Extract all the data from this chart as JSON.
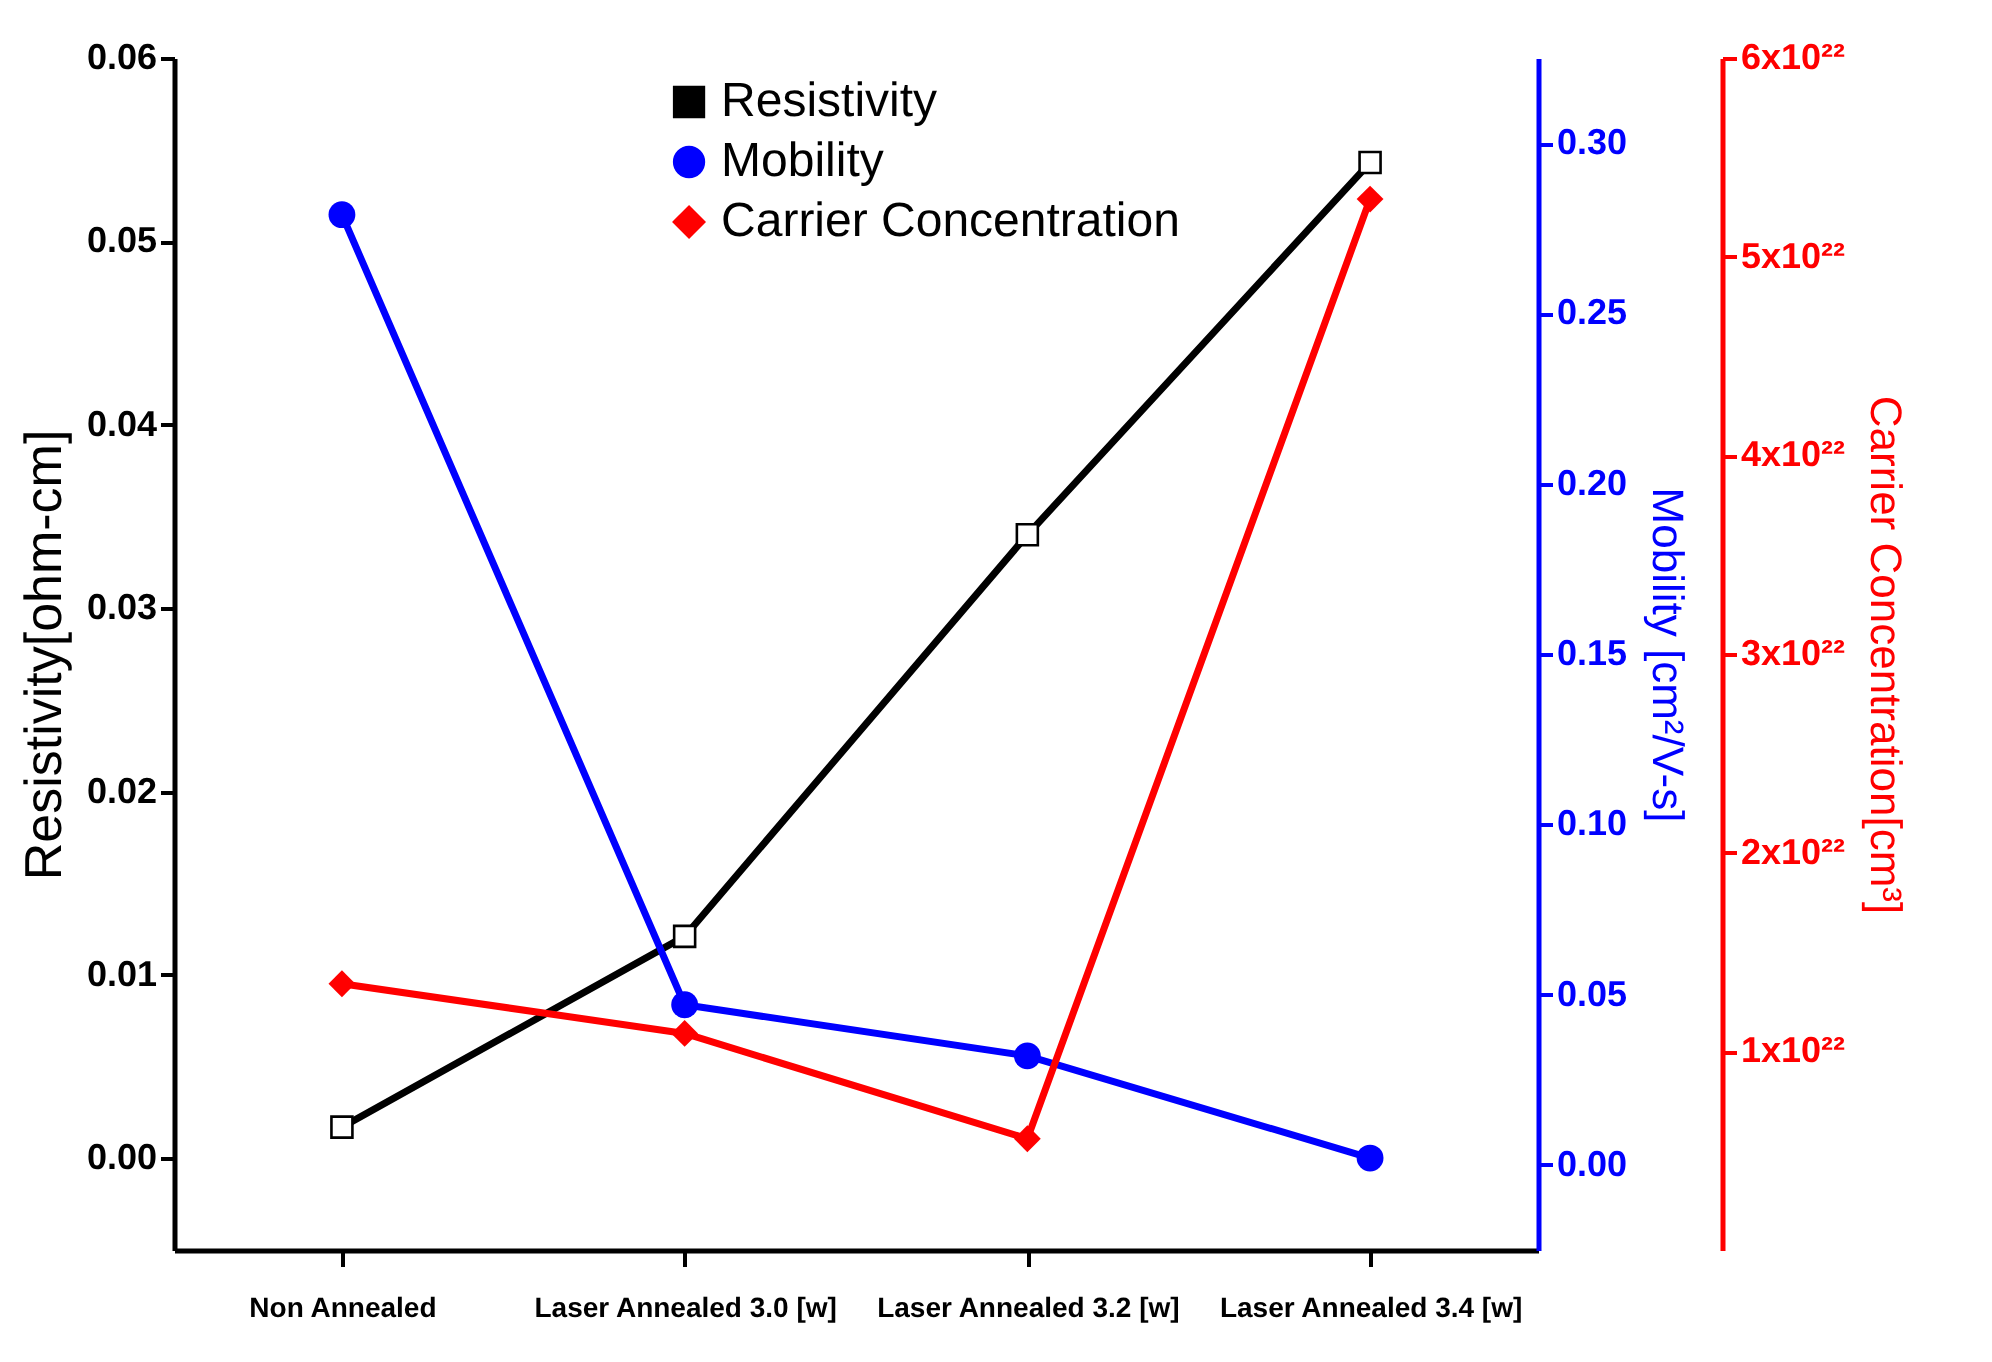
{
  "chart_data": {
    "type": "line",
    "categories": [
      "Non Annealed",
      "Laser Annealed 3.0 [w]",
      "Laser Annealed 3.2 [w]",
      "Laser Annealed 3.4 [w]"
    ],
    "ylabel": "Resistivity[ohm-cm]",
    "y2label": "Mobility  [cm²/V-s]",
    "y3label": "Carrier Concentration[cm³]",
    "ylim": [
      -0.005,
      0.06
    ],
    "yticks": [
      {
        "value": 0,
        "label": "0.00"
      },
      {
        "value": 0.01,
        "label": "0.01"
      },
      {
        "value": 0.02,
        "label": "0.02"
      },
      {
        "value": 0.03,
        "label": "0.03"
      },
      {
        "value": 0.04,
        "label": "0.04"
      },
      {
        "value": 0.05,
        "label": "0.05"
      },
      {
        "value": 0.06,
        "label": "0.06"
      }
    ],
    "y2lim": [
      -0.025,
      0.325
    ],
    "y2ticks": [
      {
        "value": 0,
        "label": "0.00"
      },
      {
        "value": 0.05,
        "label": "0.05"
      },
      {
        "value": 0.1,
        "label": "0.10"
      },
      {
        "value": 0.15,
        "label": "0.15"
      },
      {
        "value": 0.2,
        "label": "0.20"
      },
      {
        "value": 0.25,
        "label": "0.25"
      },
      {
        "value": 0.3,
        "label": "0.30"
      }
    ],
    "y3lim": [
      0,
      6e+22
    ],
    "y3ticks": [
      {
        "value": 1e+22,
        "label": "1x10²²"
      },
      {
        "value": 2e+22,
        "label": "2x10²²"
      },
      {
        "value": 3e+22,
        "label": "3x10²²"
      },
      {
        "value": 4e+22,
        "label": "4x10²²"
      },
      {
        "value": 5e+22,
        "label": "5x10²²"
      },
      {
        "value": 6e+22,
        "label": "6x10²²"
      }
    ],
    "legend": "top",
    "line_style": "solid",
    "series": [
      {
        "name": "Resistivity",
        "color": "#000000",
        "marker": "square",
        "values": [
          0.0017,
          0.0121,
          0.034,
          0.0543
        ]
      },
      {
        "name": "Mobility",
        "color": "#0000ff",
        "marker": "circle",
        "axis": "y2",
        "values": [
          0.279,
          0.047,
          0.032,
          0.002
        ]
      },
      {
        "name": "Carrier Concentration",
        "color": "#ff0000",
        "marker": "diamond",
        "axis": "y3",
        "values": [
          1.34e+22,
          1.09e+22,
          5.6e+21,
          5.29e+22
        ]
      }
    ]
  }
}
